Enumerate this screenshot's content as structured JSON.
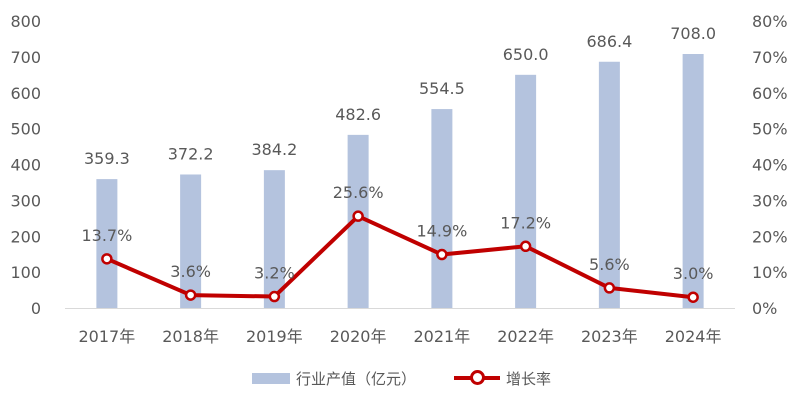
{
  "chart_data": {
    "type": "bar",
    "categories": [
      "2017年",
      "2018年",
      "2019年",
      "2020年",
      "2021年",
      "2022年",
      "2023年",
      "2024年"
    ],
    "series": [
      {
        "name": "行业产值（亿元）",
        "type": "bar",
        "axis": "left",
        "color": "#b4c3de",
        "values": [
          359.3,
          372.2,
          384.2,
          482.6,
          554.5,
          650.0,
          686.4,
          708.0
        ],
        "labels": [
          "359.3",
          "372.2",
          "384.2",
          "482.6",
          "554.5",
          "650.0",
          "686.4",
          "708.0"
        ]
      },
      {
        "name": "增长率",
        "type": "line",
        "axis": "right",
        "color": "#c00000",
        "values": [
          13.7,
          3.6,
          3.2,
          25.6,
          14.9,
          17.2,
          5.6,
          3.0
        ],
        "labels": [
          "13.7%",
          "3.6%",
          "3.2%",
          "25.6%",
          "14.9%",
          "17.2%",
          "5.6%",
          "3.0%"
        ]
      }
    ],
    "y_left": {
      "ylim": [
        0,
        800
      ],
      "ticks": [
        "0",
        "100",
        "200",
        "300",
        "400",
        "500",
        "600",
        "700",
        "800"
      ]
    },
    "y_right": {
      "ylim": [
        0,
        80
      ],
      "ticks": [
        "0%",
        "10%",
        "20%",
        "30%",
        "40%",
        "50%",
        "60%",
        "70%",
        "80%"
      ]
    },
    "grid": false,
    "legend": "bottom",
    "text_color": "#595959",
    "axis_color": "#d9d9d9"
  }
}
